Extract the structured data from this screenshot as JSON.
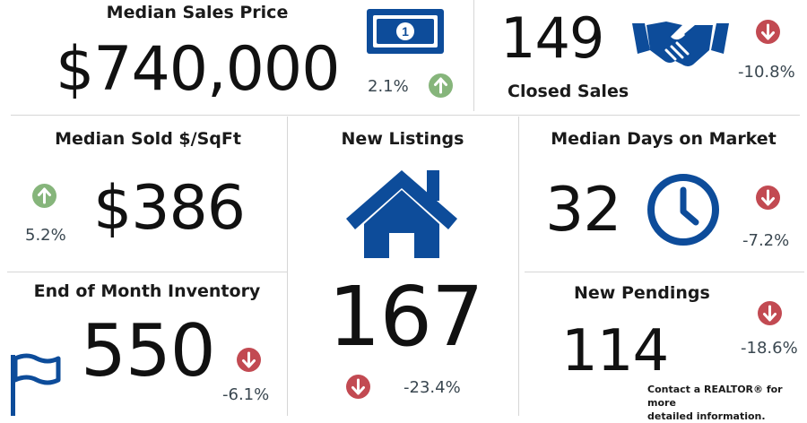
{
  "colors": {
    "brand_blue": "#0d4c9a",
    "up_green": "#86b57b",
    "down_red": "#c24a52"
  },
  "median_sales_price": {
    "title": "Median Sales Price",
    "value": "$740,000",
    "change": "2.1%",
    "direction": "up",
    "icon": "money-bill-icon"
  },
  "closed_sales": {
    "title": "Closed Sales",
    "value": "149",
    "change": "-10.8%",
    "direction": "down",
    "icon": "handshake-icon"
  },
  "median_sold_sqft": {
    "title": "Median Sold $/SqFt",
    "value": "$386",
    "change": "5.2%",
    "direction": "up"
  },
  "new_listings": {
    "title": "New Listings",
    "value": "167",
    "change": "-23.4%",
    "direction": "down",
    "icon": "house-icon"
  },
  "median_days_on_market": {
    "title": "Median Days on Market",
    "value": "32",
    "change": "-7.2%",
    "direction": "down",
    "icon": "clock-icon"
  },
  "end_of_month_inventory": {
    "title": "End of Month Inventory",
    "value": "550",
    "change": "-6.1%",
    "direction": "down",
    "icon": "flag-icon"
  },
  "new_pendings": {
    "title": "New Pendings",
    "value": "114",
    "change": "-18.6%",
    "direction": "down"
  },
  "footer": {
    "note_line1": "Contact a REALTOR® for more",
    "note_line2": "detailed information."
  }
}
